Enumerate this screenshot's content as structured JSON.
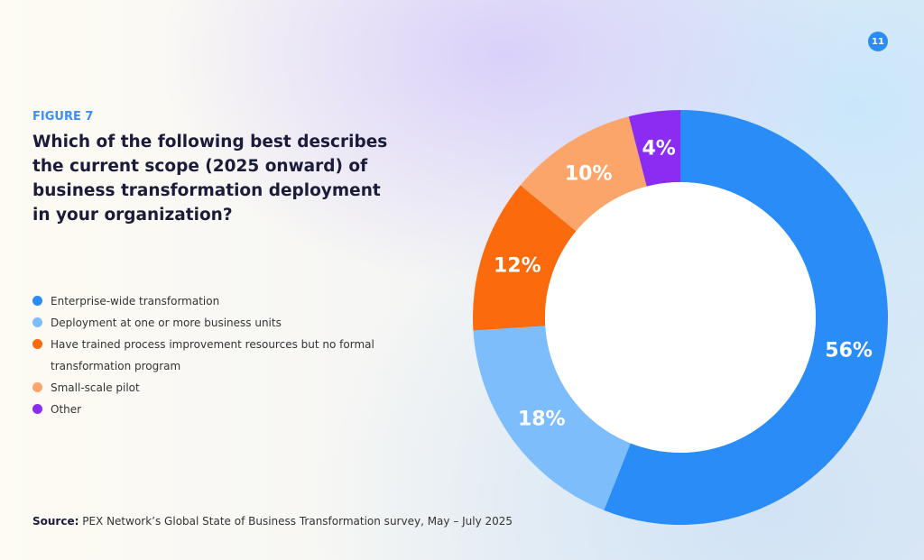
{
  "page_number": "11",
  "figure_label": "FIGURE 7",
  "chart_data": {
    "type": "pie",
    "title": "Which of the following best describes the current scope (2025 onward) of business transformation deployment in your organization?",
    "categories": [
      "Enterprise-wide transformation",
      "Deployment at one or more business units",
      "Have trained process improvement resources but no formal transformation program",
      "Small-scale pilot",
      "Other"
    ],
    "values": [
      56,
      18,
      12,
      10,
      4
    ],
    "labels": [
      "56%",
      "18%",
      "12%",
      "10%",
      "4%"
    ],
    "colors": [
      "#2a8cf7",
      "#7dbdfb",
      "#fb6a0c",
      "#fca56a",
      "#8a2cf2"
    ],
    "legend_position": "left",
    "donut": true
  },
  "source": {
    "label": "Source:",
    "text": " PEX Network’s Global State of Business Transformation survey, May – July 2025"
  }
}
